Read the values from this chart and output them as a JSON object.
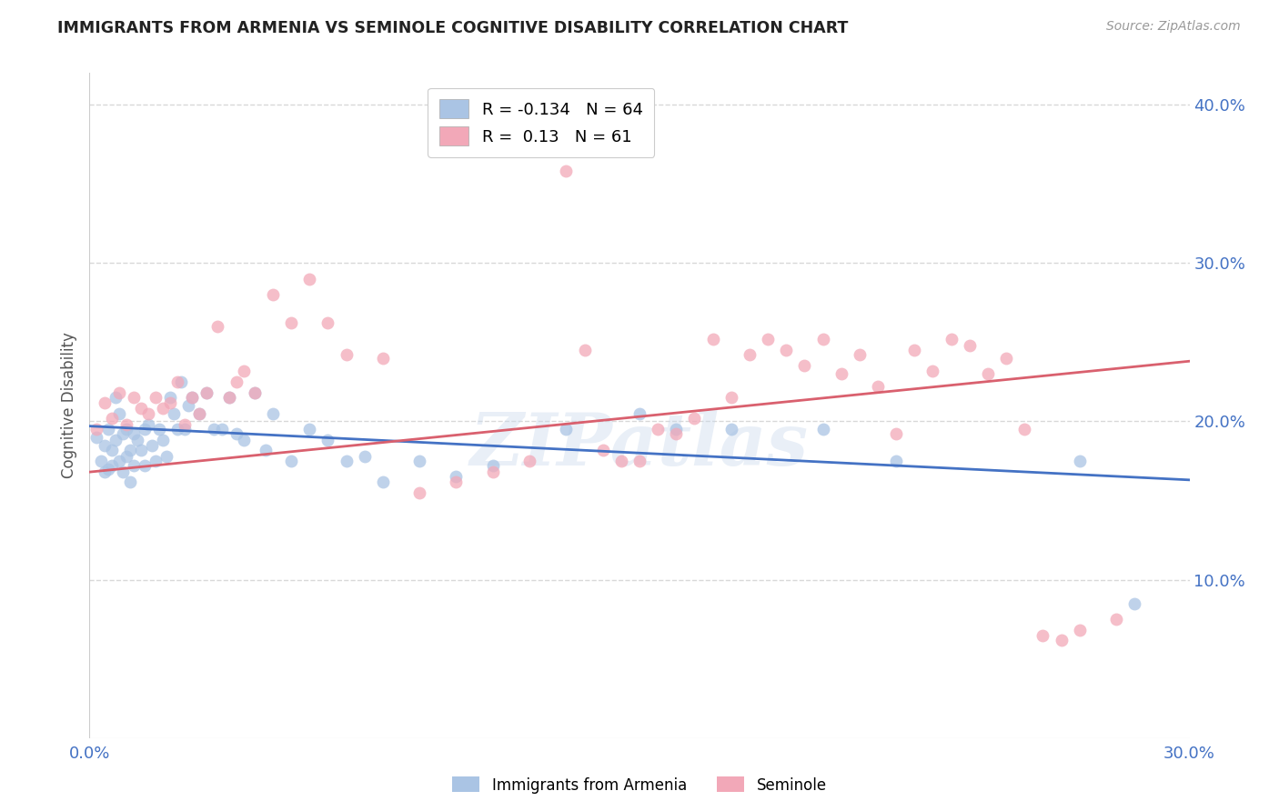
{
  "title": "IMMIGRANTS FROM ARMENIA VS SEMINOLE COGNITIVE DISABILITY CORRELATION CHART",
  "source": "Source: ZipAtlas.com",
  "ylabel": "Cognitive Disability",
  "x_min": 0.0,
  "x_max": 0.3,
  "y_min": 0.0,
  "y_max": 0.42,
  "blue_R": -0.134,
  "blue_N": 64,
  "pink_R": 0.13,
  "pink_N": 61,
  "blue_color": "#aac4e4",
  "pink_color": "#f2a8b8",
  "blue_line_color": "#4472c4",
  "pink_line_color": "#d9606e",
  "watermark": "ZIPatlas",
  "legend_label_blue": "Immigrants from Armenia",
  "legend_label_pink": "Seminole",
  "blue_scatter_x": [
    0.002,
    0.003,
    0.004,
    0.004,
    0.005,
    0.005,
    0.006,
    0.006,
    0.007,
    0.007,
    0.008,
    0.008,
    0.009,
    0.009,
    0.01,
    0.01,
    0.011,
    0.011,
    0.012,
    0.012,
    0.013,
    0.014,
    0.015,
    0.015,
    0.016,
    0.017,
    0.018,
    0.019,
    0.02,
    0.021,
    0.022,
    0.023,
    0.024,
    0.025,
    0.026,
    0.027,
    0.028,
    0.03,
    0.032,
    0.034,
    0.036,
    0.038,
    0.04,
    0.042,
    0.045,
    0.048,
    0.05,
    0.055,
    0.06,
    0.065,
    0.07,
    0.075,
    0.08,
    0.09,
    0.1,
    0.11,
    0.13,
    0.15,
    0.16,
    0.175,
    0.2,
    0.22,
    0.27,
    0.285
  ],
  "blue_scatter_y": [
    0.19,
    0.175,
    0.185,
    0.168,
    0.195,
    0.17,
    0.182,
    0.172,
    0.215,
    0.188,
    0.175,
    0.205,
    0.192,
    0.168,
    0.195,
    0.178,
    0.182,
    0.162,
    0.192,
    0.172,
    0.188,
    0.182,
    0.195,
    0.172,
    0.198,
    0.185,
    0.175,
    0.195,
    0.188,
    0.178,
    0.215,
    0.205,
    0.195,
    0.225,
    0.195,
    0.21,
    0.215,
    0.205,
    0.218,
    0.195,
    0.195,
    0.215,
    0.192,
    0.188,
    0.218,
    0.182,
    0.205,
    0.175,
    0.195,
    0.188,
    0.175,
    0.178,
    0.162,
    0.175,
    0.165,
    0.172,
    0.195,
    0.205,
    0.195,
    0.195,
    0.195,
    0.175,
    0.175,
    0.085
  ],
  "pink_scatter_x": [
    0.002,
    0.004,
    0.006,
    0.008,
    0.01,
    0.012,
    0.014,
    0.016,
    0.018,
    0.02,
    0.022,
    0.024,
    0.026,
    0.028,
    0.03,
    0.032,
    0.035,
    0.038,
    0.04,
    0.042,
    0.045,
    0.05,
    0.055,
    0.06,
    0.065,
    0.07,
    0.08,
    0.09,
    0.1,
    0.11,
    0.12,
    0.13,
    0.135,
    0.14,
    0.145,
    0.15,
    0.155,
    0.16,
    0.165,
    0.17,
    0.175,
    0.18,
    0.185,
    0.19,
    0.195,
    0.2,
    0.205,
    0.21,
    0.215,
    0.22,
    0.225,
    0.23,
    0.235,
    0.24,
    0.245,
    0.25,
    0.255,
    0.26,
    0.265,
    0.27,
    0.28
  ],
  "pink_scatter_y": [
    0.195,
    0.212,
    0.202,
    0.218,
    0.198,
    0.215,
    0.208,
    0.205,
    0.215,
    0.208,
    0.212,
    0.225,
    0.198,
    0.215,
    0.205,
    0.218,
    0.26,
    0.215,
    0.225,
    0.232,
    0.218,
    0.28,
    0.262,
    0.29,
    0.262,
    0.242,
    0.24,
    0.155,
    0.162,
    0.168,
    0.175,
    0.358,
    0.245,
    0.182,
    0.175,
    0.175,
    0.195,
    0.192,
    0.202,
    0.252,
    0.215,
    0.242,
    0.252,
    0.245,
    0.235,
    0.252,
    0.23,
    0.242,
    0.222,
    0.192,
    0.245,
    0.232,
    0.252,
    0.248,
    0.23,
    0.24,
    0.195,
    0.065,
    0.062,
    0.068,
    0.075
  ],
  "grid_color": "#d8d8d8",
  "bg_color": "#ffffff",
  "title_color": "#222222",
  "axis_color": "#4472c4",
  "marker_size": 100
}
